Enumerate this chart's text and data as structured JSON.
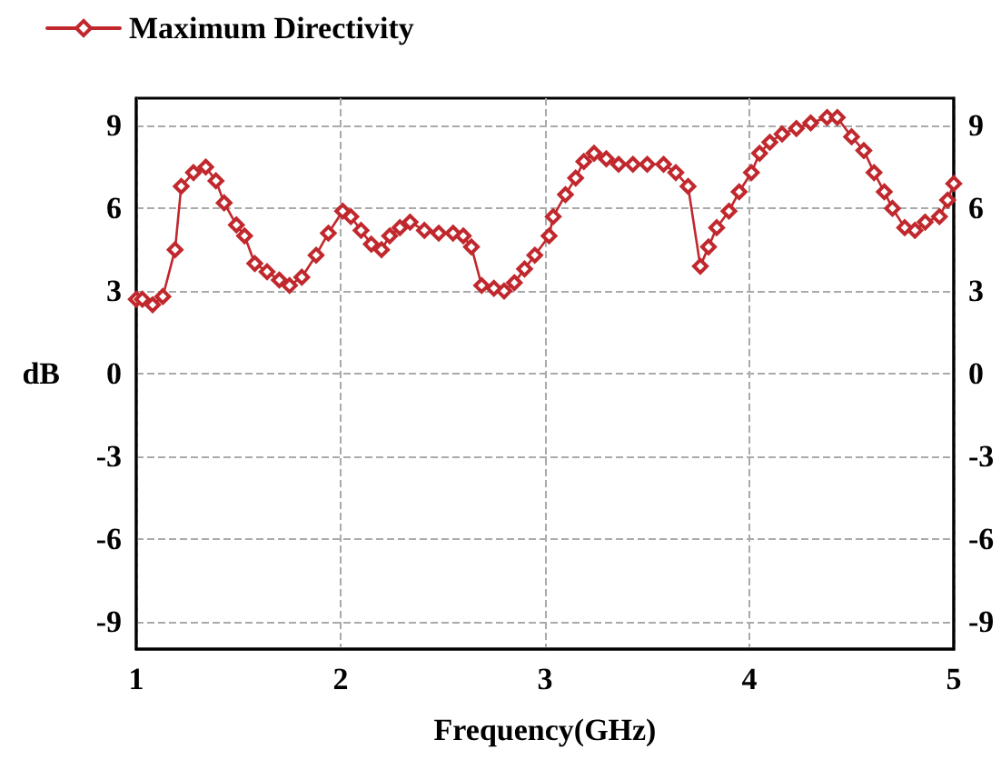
{
  "chart_data": {
    "type": "line",
    "xlabel": "Frequency(GHz)",
    "ylabel": "dB",
    "xlim": [
      1,
      5
    ],
    "xticks": [
      1,
      2,
      3,
      4,
      5
    ],
    "ylim": [
      -10,
      10
    ],
    "yticks": [
      -9,
      -6,
      -3,
      0,
      3,
      6,
      9
    ],
    "y2lim": [
      -10,
      10
    ],
    "y2ticks": [
      -9,
      -6,
      -3,
      0,
      3,
      6,
      9
    ],
    "grid": true,
    "legend": "top left",
    "marker": "diamond",
    "line_style": "solid",
    "series": [
      {
        "name": "Maximum Directivity",
        "color": "#c0282d",
        "x": [
          1.0,
          1.03,
          1.08,
          1.13,
          1.19,
          1.22,
          1.28,
          1.34,
          1.39,
          1.43,
          1.49,
          1.53,
          1.58,
          1.64,
          1.7,
          1.75,
          1.81,
          1.88,
          1.94,
          2.01,
          2.05,
          2.1,
          2.15,
          2.2,
          2.24,
          2.29,
          2.34,
          2.41,
          2.48,
          2.55,
          2.6,
          2.64,
          2.69,
          2.75,
          2.8,
          2.85,
          2.9,
          2.95,
          3.02,
          3.04,
          3.1,
          3.15,
          3.19,
          3.24,
          3.3,
          3.36,
          3.43,
          3.5,
          3.58,
          3.64,
          3.7,
          3.76,
          3.8,
          3.84,
          3.9,
          3.95,
          4.01,
          4.05,
          4.1,
          4.16,
          4.23,
          4.3,
          4.38,
          4.43,
          4.5,
          4.56,
          4.61,
          4.66,
          4.7,
          4.76,
          4.81,
          4.86,
          4.93,
          4.97,
          5.0
        ],
        "values": [
          2.7,
          2.7,
          2.5,
          2.8,
          4.5,
          6.8,
          7.3,
          7.5,
          7.0,
          6.2,
          5.4,
          5.0,
          4.0,
          3.7,
          3.4,
          3.2,
          3.5,
          4.3,
          5.1,
          5.9,
          5.7,
          5.2,
          4.7,
          4.5,
          5.0,
          5.3,
          5.5,
          5.2,
          5.1,
          5.1,
          5.0,
          4.6,
          3.2,
          3.1,
          3.0,
          3.3,
          3.8,
          4.3,
          5.0,
          5.7,
          6.5,
          7.1,
          7.7,
          8.0,
          7.8,
          7.6,
          7.6,
          7.6,
          7.6,
          7.3,
          6.8,
          3.9,
          4.6,
          5.3,
          5.9,
          6.6,
          7.3,
          8.0,
          8.4,
          8.7,
          8.9,
          9.1,
          9.3,
          9.3,
          8.6,
          8.1,
          7.3,
          6.6,
          6.0,
          5.3,
          5.2,
          5.5,
          5.7,
          6.3,
          6.9
        ]
      }
    ]
  }
}
